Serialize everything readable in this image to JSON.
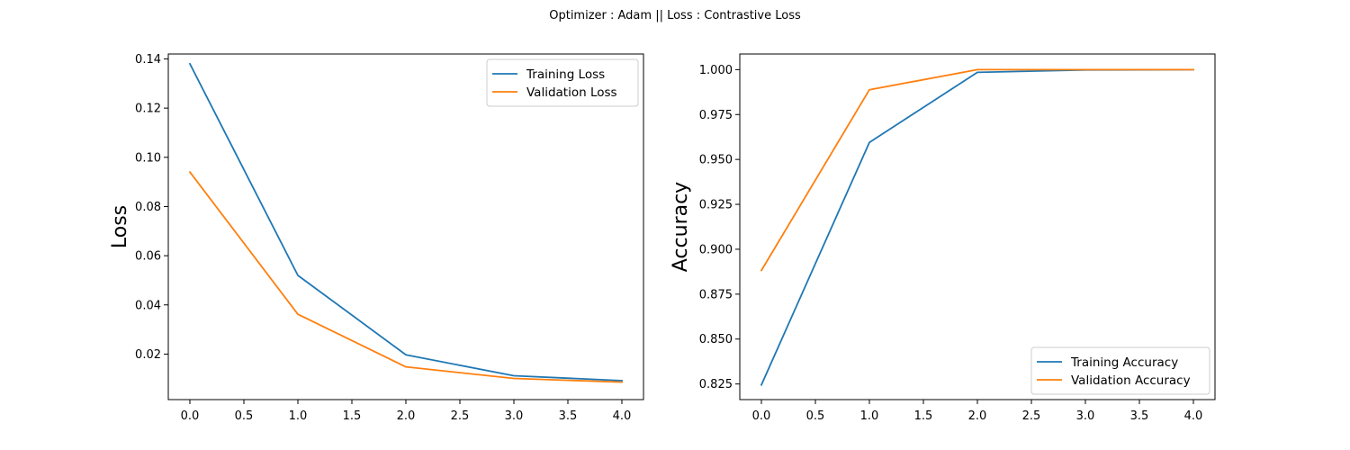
{
  "figure": {
    "suptitle": "Optimizer : Adam || Loss : Contrastive Loss"
  },
  "chart_data": [
    {
      "type": "line",
      "title": "",
      "xlabel": "",
      "ylabel": "Loss",
      "x": [
        0,
        1,
        2,
        3,
        4
      ],
      "xlim": [
        -0.2,
        4.2
      ],
      "ylim": [
        0.0015,
        0.142
      ],
      "xticks": [
        0,
        0.5,
        1,
        1.5,
        2,
        2.5,
        3,
        3.5,
        4
      ],
      "xtick_labels": [
        "0.0",
        "0.5",
        "1.0",
        "1.5",
        "2.0",
        "2.5",
        "3.0",
        "3.5",
        "4.0"
      ],
      "yticks": [
        0.02,
        0.04,
        0.06,
        0.08,
        0.1,
        0.12,
        0.14
      ],
      "ytick_labels": [
        "0.02",
        "0.04",
        "0.06",
        "0.08",
        "0.10",
        "0.12",
        "0.14"
      ],
      "legend_position": "upper right",
      "grid": false,
      "series": [
        {
          "name": "Training Loss",
          "color": "#1f77b4",
          "values": [
            0.138,
            0.052,
            0.0197,
            0.0112,
            0.0092
          ]
        },
        {
          "name": "Validation Loss",
          "color": "#ff7f0e",
          "values": [
            0.094,
            0.0362,
            0.0148,
            0.0101,
            0.0086
          ]
        }
      ]
    },
    {
      "type": "line",
      "title": "",
      "xlabel": "",
      "ylabel": "Accuracy",
      "x": [
        0,
        1,
        2,
        3,
        4
      ],
      "xlim": [
        -0.2,
        4.2
      ],
      "ylim": [
        0.8163,
        1.0087
      ],
      "xticks": [
        0,
        0.5,
        1,
        1.5,
        2,
        2.5,
        3,
        3.5,
        4
      ],
      "xtick_labels": [
        "0.0",
        "0.5",
        "1.0",
        "1.5",
        "2.0",
        "2.5",
        "3.0",
        "3.5",
        "4.0"
      ],
      "yticks": [
        0.825,
        0.85,
        0.875,
        0.9,
        0.925,
        0.95,
        0.975,
        1.0
      ],
      "ytick_labels": [
        "0.825",
        "0.850",
        "0.875",
        "0.900",
        "0.925",
        "0.950",
        "0.975",
        "1.000"
      ],
      "legend_position": "lower right",
      "grid": false,
      "series": [
        {
          "name": "Training Accuracy",
          "color": "#1f77b4",
          "values": [
            0.8245,
            0.9595,
            0.9985,
            0.9998,
            1.0
          ]
        },
        {
          "name": "Validation Accuracy",
          "color": "#ff7f0e",
          "values": [
            0.8882,
            0.9888,
            1.0,
            1.0,
            1.0
          ]
        }
      ]
    }
  ]
}
